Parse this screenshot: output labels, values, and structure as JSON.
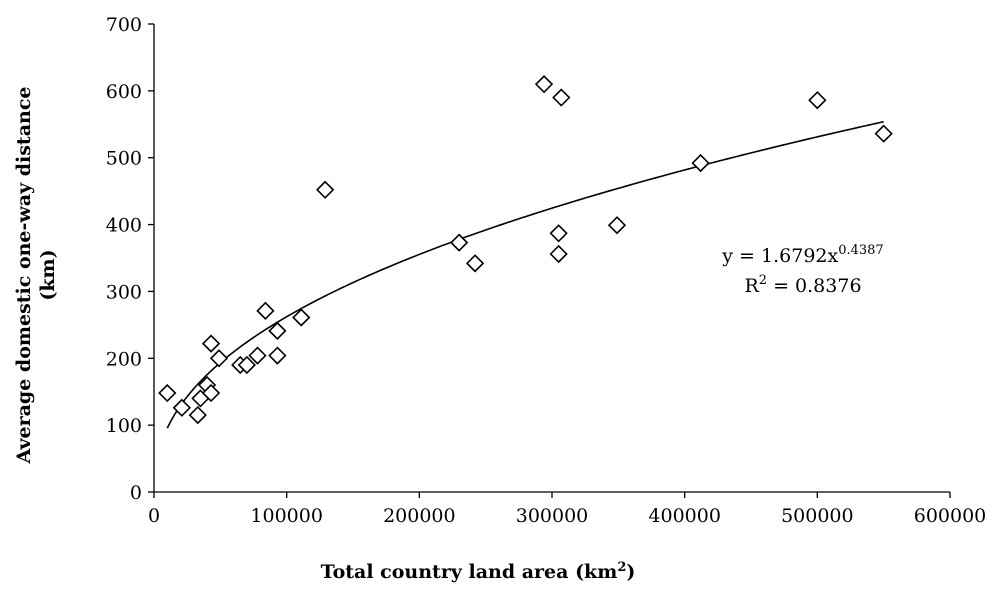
{
  "chart_data": {
    "type": "scatter",
    "xlabel": "Total country land area (km",
    "xlabel_sup": "2",
    "xlabel_close": ")",
    "ylabel_line1": "Average domestic one-way distance",
    "ylabel_line2": "(km)",
    "xlim": [
      0,
      600000
    ],
    "ylim": [
      0,
      700
    ],
    "x_ticks": [
      0,
      100000,
      200000,
      300000,
      400000,
      500000,
      600000
    ],
    "y_ticks": [
      0,
      100,
      200,
      300,
      400,
      500,
      600,
      700
    ],
    "x_tick_labels": [
      "0",
      "100000",
      "200000",
      "300000",
      "400000",
      "500000",
      "600000"
    ],
    "y_tick_labels": [
      "0",
      "100",
      "200",
      "300",
      "400",
      "500",
      "600",
      "700"
    ],
    "marker": "diamond-open",
    "grid": false,
    "points": [
      {
        "x": 10000,
        "y": 148
      },
      {
        "x": 21000,
        "y": 126
      },
      {
        "x": 33000,
        "y": 115
      },
      {
        "x": 35000,
        "y": 140
      },
      {
        "x": 40000,
        "y": 160
      },
      {
        "x": 43000,
        "y": 148
      },
      {
        "x": 43000,
        "y": 222
      },
      {
        "x": 49000,
        "y": 200
      },
      {
        "x": 65000,
        "y": 190
      },
      {
        "x": 70000,
        "y": 190
      },
      {
        "x": 78000,
        "y": 204
      },
      {
        "x": 84000,
        "y": 271
      },
      {
        "x": 93000,
        "y": 241
      },
      {
        "x": 93000,
        "y": 204
      },
      {
        "x": 111000,
        "y": 261
      },
      {
        "x": 129000,
        "y": 452
      },
      {
        "x": 230000,
        "y": 373
      },
      {
        "x": 242000,
        "y": 342
      },
      {
        "x": 294000,
        "y": 610
      },
      {
        "x": 305000,
        "y": 387
      },
      {
        "x": 305000,
        "y": 356
      },
      {
        "x": 307000,
        "y": 590
      },
      {
        "x": 349000,
        "y": 399
      },
      {
        "x": 412000,
        "y": 492
      },
      {
        "x": 500000,
        "y": 586
      },
      {
        "x": 550000,
        "y": 536
      }
    ],
    "trendline": {
      "type": "power",
      "coef": 1.6792,
      "exponent": 0.4387,
      "x_range": [
        10000,
        550000
      ],
      "equation_base": "y = 1.6792x",
      "equation_exp": "0.4387",
      "r2_prefix": "R",
      "r2_sup": "2",
      "r2_suffix": " = 0.8376"
    }
  }
}
